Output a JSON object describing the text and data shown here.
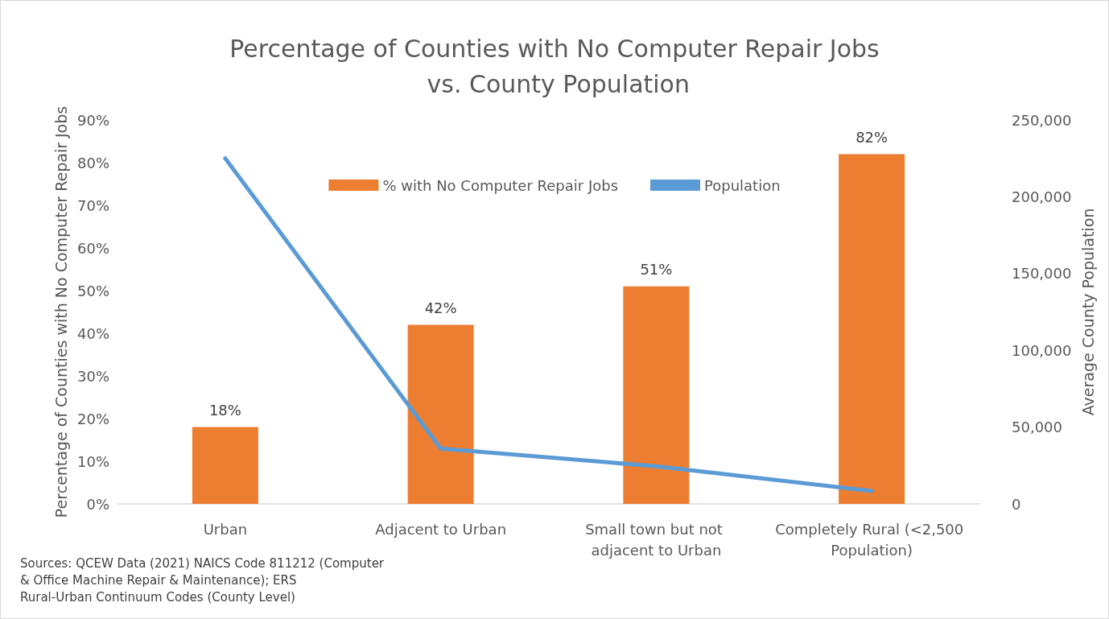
{
  "chart_data": {
    "type": "bar",
    "title": "Percentage of Counties with No Computer Repair Jobs vs. County Population",
    "ylabel": "Percentage of Counties with No Computer Repair Jobs",
    "y2label": "Average County Population",
    "categories": [
      "Urban",
      "Adjacent to Urban",
      "Small town but not adjacent to Urban",
      "Completely Rural (<2,500 Population)"
    ],
    "series": [
      {
        "name": "% with No Computer Repair Jobs",
        "color": "#ed7d31",
        "values": [
          18,
          42,
          51,
          82
        ],
        "value_labels": [
          "18%",
          "42%",
          "51%",
          "82%"
        ]
      },
      {
        "name": "Population",
        "type": "line",
        "axis": "y2",
        "color": "#5b9bd5",
        "values": [
          225000,
          36000,
          24500,
          8400
        ]
      }
    ],
    "ylim": [
      0,
      90
    ],
    "yticks": [
      {
        "value": 0,
        "label": "0%"
      },
      {
        "value": 10,
        "label": "10%"
      },
      {
        "value": 20,
        "label": "20%"
      },
      {
        "value": 30,
        "label": "30%"
      },
      {
        "value": 40,
        "label": "40%"
      },
      {
        "value": 50,
        "label": "50%"
      },
      {
        "value": 60,
        "label": "60%"
      },
      {
        "value": 70,
        "label": "70%"
      },
      {
        "value": 80,
        "label": "80%"
      },
      {
        "value": 90,
        "label": "90%"
      }
    ],
    "y2lim": [
      0,
      250000
    ],
    "y2ticks": [
      0,
      {
        "value": 50000,
        "label": "50,000"
      },
      {
        "value": 100000,
        "label": "100,000"
      },
      {
        "value": 150000,
        "label": "150,000"
      },
      {
        "value": 200000,
        "label": "200,000"
      },
      {
        "value": 250000,
        "label": "250,000"
      }
    ],
    "legend": "top",
    "marker": "none",
    "grid": false,
    "annotations": [
      "Sources: QCEW Data (2021) NAICS Code 811212 (Computer & Office Machine Repair & Maintenance); ERS Rural-Urban Continuum Codes (County Level)"
    ]
  }
}
